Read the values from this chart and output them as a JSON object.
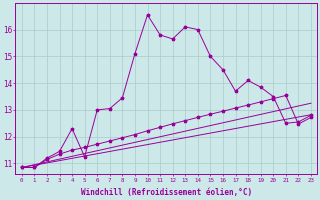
{
  "xlabel": "Windchill (Refroidissement éolien,°C)",
  "bg_color": "#cce8e8",
  "line_color": "#990099",
  "grid_color": "#aacccc",
  "xlim": [
    -0.5,
    23.5
  ],
  "ylim": [
    10.6,
    17.0
  ],
  "xticks": [
    0,
    1,
    2,
    3,
    4,
    5,
    6,
    7,
    8,
    9,
    10,
    11,
    12,
    13,
    14,
    15,
    16,
    17,
    18,
    19,
    20,
    21,
    22,
    23
  ],
  "yticks": [
    11,
    12,
    13,
    14,
    15,
    16
  ],
  "curve_x": [
    0,
    1,
    2,
    3,
    4,
    5,
    6,
    7,
    8,
    9,
    10,
    11,
    12,
    13,
    14,
    15,
    16,
    17,
    18,
    19,
    20,
    21,
    22,
    23
  ],
  "curve_y": [
    10.85,
    10.85,
    11.2,
    11.45,
    12.3,
    11.25,
    13.0,
    13.05,
    13.45,
    15.1,
    16.55,
    15.8,
    15.65,
    16.1,
    16.0,
    15.0,
    14.5,
    13.7,
    14.1,
    13.85,
    13.5,
    12.5,
    12.55,
    12.8
  ],
  "line1_x": [
    0,
    1,
    2,
    3,
    4,
    5,
    6,
    7,
    8,
    9,
    10,
    11,
    12,
    13,
    14,
    15,
    16,
    17,
    18,
    19,
    20,
    21,
    22,
    23
  ],
  "line1_y": [
    10.85,
    10.85,
    11.15,
    11.35,
    11.5,
    11.6,
    11.72,
    11.84,
    11.96,
    12.08,
    12.22,
    12.35,
    12.48,
    12.6,
    12.72,
    12.84,
    12.95,
    13.07,
    13.18,
    13.3,
    13.42,
    13.54,
    12.47,
    12.72
  ],
  "line2_x": [
    0,
    23
  ],
  "line2_y": [
    10.85,
    13.25
  ],
  "line3_x": [
    0,
    23
  ],
  "line3_y": [
    10.85,
    12.82
  ]
}
